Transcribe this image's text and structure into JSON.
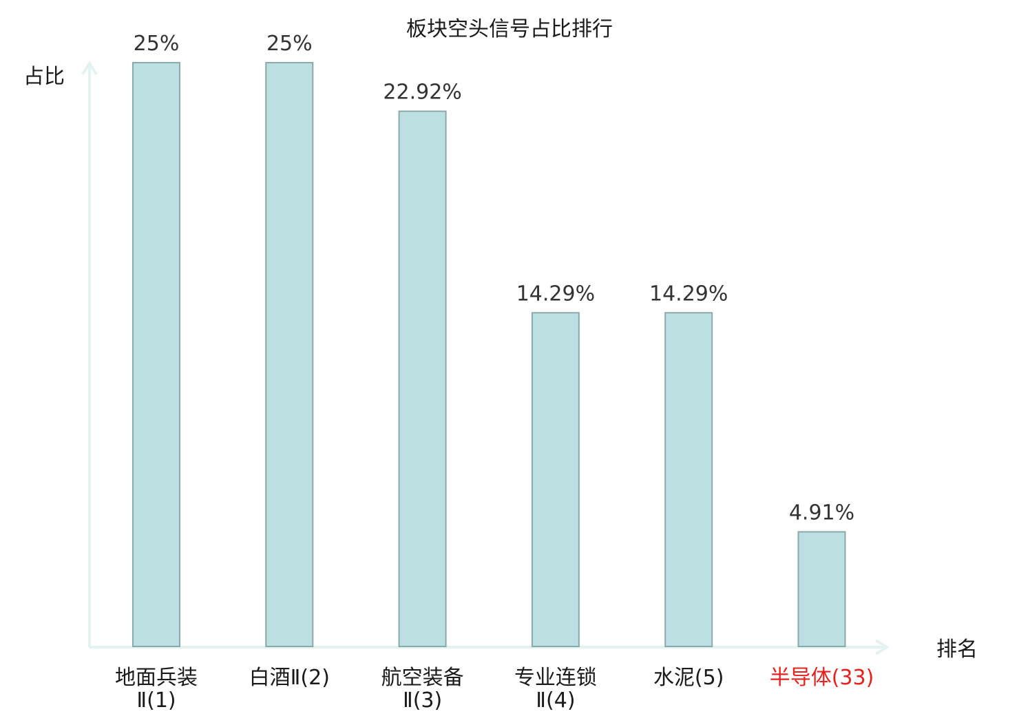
{
  "chart_data": {
    "type": "bar",
    "title": "板块空头信号占比排行",
    "xlabel": "排名",
    "ylabel": "占比",
    "ylim": [
      0,
      25
    ],
    "grid": false,
    "categories": [
      {
        "lines": [
          "地面兵装",
          "Ⅱ(1)"
        ],
        "highlight": false
      },
      {
        "lines": [
          "白酒Ⅱ(2)"
        ],
        "highlight": false
      },
      {
        "lines": [
          "航空装备",
          "Ⅱ(3)"
        ],
        "highlight": false
      },
      {
        "lines": [
          "专业连锁",
          "Ⅱ(4)"
        ],
        "highlight": false
      },
      {
        "lines": [
          "水泥(5)"
        ],
        "highlight": false
      },
      {
        "lines": [
          "半导体(33)"
        ],
        "highlight": true
      }
    ],
    "values": [
      25,
      25,
      22.92,
      14.29,
      14.29,
      4.91
    ],
    "value_labels": [
      "25%",
      "25%",
      "22.92%",
      "14.29%",
      "14.29%",
      "4.91%"
    ]
  },
  "colors": {
    "bar_fill": "#bce0e2",
    "bar_stroke": "#8aa9ab",
    "axis": "#e2f3f1",
    "text": "#1a1a1a",
    "value_text": "#333333",
    "highlight_text": "#e8201c"
  }
}
